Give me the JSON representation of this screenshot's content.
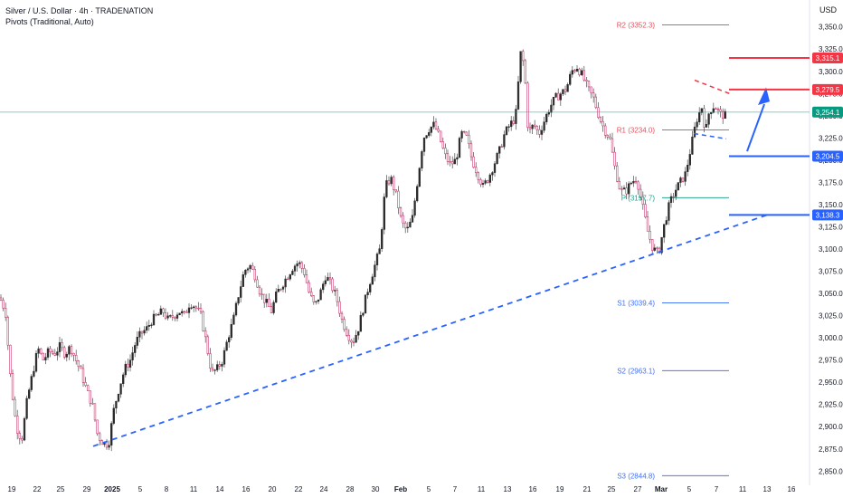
{
  "header": {
    "title": "Silver / U.S. Dollar · 4h · TRADENATION",
    "indicator": "Pivots (Traditional, Auto)"
  },
  "currency": "USD",
  "chart_data": {
    "type": "candlestick",
    "ylim": [
      2835,
      3365
    ],
    "y_ticks": [
      "3,350.0",
      "3,325.0",
      "3,300.0",
      "3,275.0",
      "3,250.0",
      "3,225.0",
      "3,200.0",
      "3,175.0",
      "3,150.0",
      "3,125.0",
      "3,100.0",
      "3,075.0",
      "3,050.0",
      "3,025.0",
      "3,000.0",
      "2,975.0",
      "2,950.0",
      "2,925.0",
      "2,900.0",
      "2,875.0",
      "2,850.0"
    ],
    "y_tick_values": [
      3350,
      3325,
      3300,
      3275,
      3250,
      3225,
      3200,
      3175,
      3150,
      3125,
      3100,
      3075,
      3050,
      3025,
      3000,
      2975,
      2950,
      2925,
      2900,
      2875,
      2850
    ],
    "x_ticks": [
      "19",
      "22",
      "25",
      "29",
      "2025",
      "5",
      "8",
      "11",
      "14",
      "16",
      "20",
      "22",
      "24",
      "28",
      "30",
      "Feb",
      "5",
      "7",
      "11",
      "13",
      "16",
      "19",
      "21",
      "25",
      "27",
      "Mar",
      "5",
      "7",
      "11",
      "13",
      "16"
    ],
    "pivots": [
      {
        "label": "R2 (3352.3)",
        "value": 3352.3,
        "color": "#f23645"
      },
      {
        "label": "R1 (3234.0)",
        "value": 3234.0,
        "color": "#f23645"
      },
      {
        "label": "P (3157.7)",
        "value": 3157.7,
        "color": "#089981"
      },
      {
        "label": "S1 (3039.4)",
        "value": 3039.4,
        "color": "#2962ff"
      },
      {
        "label": "S2 (2963.1)",
        "value": 2963.1,
        "color": "#2962ff"
      },
      {
        "label": "S3 (2844.8)",
        "value": 2844.8,
        "color": "#2962ff"
      }
    ],
    "levels": [
      {
        "value": 3315.1,
        "label": "3,315.1",
        "color": "#f23645"
      },
      {
        "value": 3279.5,
        "label": "3,279.5",
        "color": "#f23645"
      },
      {
        "value": 3254.1,
        "label": "3,254.1",
        "color": "#089981"
      },
      {
        "value": 3204.5,
        "label": "3,204.5",
        "color": "#2962ff"
      },
      {
        "value": 3138.3,
        "label": "3,138.3",
        "color": "#2962ff"
      }
    ],
    "trendline": {
      "from": [
        2875,
        2878
      ],
      "to": [
        3140,
        3139
      ],
      "style": "dashed",
      "color": "#2962ff"
    },
    "price_anchors": [
      [
        0,
        3045
      ],
      [
        6,
        3030
      ],
      [
        12,
        2950
      ],
      [
        18,
        2900
      ],
      [
        24,
        2885
      ],
      [
        30,
        2930
      ],
      [
        36,
        2960
      ],
      [
        42,
        2988
      ],
      [
        48,
        2975
      ],
      [
        54,
        2985
      ],
      [
        60,
        2982
      ],
      [
        66,
        2990
      ],
      [
        72,
        2982
      ],
      [
        78,
        2990
      ],
      [
        84,
        2975
      ],
      [
        90,
        2960
      ],
      [
        96,
        2940
      ],
      [
        102,
        2925
      ],
      [
        108,
        2890
      ],
      [
        114,
        2882
      ],
      [
        120,
        2880
      ],
      [
        126,
        2920
      ],
      [
        132,
        2945
      ],
      [
        138,
        2965
      ],
      [
        144,
        2975
      ],
      [
        150,
        2995
      ],
      [
        156,
        3005
      ],
      [
        162,
        3010
      ],
      [
        168,
        3020
      ],
      [
        174,
        3025
      ],
      [
        180,
        3030
      ],
      [
        186,
        3020
      ],
      [
        192,
        3025
      ],
      [
        198,
        3030
      ],
      [
        204,
        3025
      ],
      [
        210,
        3040
      ],
      [
        216,
        3035
      ],
      [
        222,
        3025
      ],
      [
        228,
        2995
      ],
      [
        234,
        2960
      ],
      [
        240,
        2965
      ],
      [
        246,
        2975
      ],
      [
        252,
        3000
      ],
      [
        258,
        3020
      ],
      [
        264,
        3050
      ],
      [
        270,
        3075
      ],
      [
        276,
        3082
      ],
      [
        282,
        3070
      ],
      [
        288,
        3050
      ],
      [
        294,
        3040
      ],
      [
        300,
        3030
      ],
      [
        306,
        3050
      ],
      [
        312,
        3060
      ],
      [
        318,
        3070
      ],
      [
        324,
        3080
      ],
      [
        330,
        3085
      ],
      [
        336,
        3075
      ],
      [
        342,
        3050
      ],
      [
        348,
        3035
      ],
      [
        354,
        3050
      ],
      [
        360,
        3070
      ],
      [
        366,
        3060
      ],
      [
        372,
        3045
      ],
      [
        378,
        3020
      ],
      [
        384,
        3005
      ],
      [
        390,
        2995
      ],
      [
        396,
        3010
      ],
      [
        402,
        3035
      ],
      [
        408,
        3060
      ],
      [
        414,
        3080
      ],
      [
        420,
        3100
      ],
      [
        426,
        3170
      ],
      [
        432,
        3180
      ],
      [
        438,
        3160
      ],
      [
        444,
        3130
      ],
      [
        450,
        3120
      ],
      [
        456,
        3135
      ],
      [
        462,
        3180
      ],
      [
        468,
        3225
      ],
      [
        474,
        3235
      ],
      [
        480,
        3240
      ],
      [
        486,
        3225
      ],
      [
        492,
        3205
      ],
      [
        498,
        3195
      ],
      [
        504,
        3200
      ],
      [
        510,
        3230
      ],
      [
        516,
        3225
      ],
      [
        522,
        3200
      ],
      [
        528,
        3185
      ],
      [
        534,
        3170
      ],
      [
        540,
        3180
      ],
      [
        546,
        3195
      ],
      [
        552,
        3210
      ],
      [
        558,
        3230
      ],
      [
        564,
        3240
      ],
      [
        570,
        3248
      ],
      [
        576,
        3325
      ],
      [
        580,
        3300
      ],
      [
        584,
        3230
      ],
      [
        590,
        3240
      ],
      [
        596,
        3230
      ],
      [
        602,
        3245
      ],
      [
        608,
        3260
      ],
      [
        614,
        3270
      ],
      [
        620,
        3275
      ],
      [
        626,
        3280
      ],
      [
        632,
        3300
      ],
      [
        638,
        3305
      ],
      [
        644,
        3295
      ],
      [
        650,
        3280
      ],
      [
        656,
        3270
      ],
      [
        662,
        3250
      ],
      [
        668,
        3235
      ],
      [
        674,
        3225
      ],
      [
        680,
        3190
      ],
      [
        686,
        3165
      ],
      [
        692,
        3165
      ],
      [
        698,
        3175
      ],
      [
        704,
        3180
      ],
      [
        710,
        3150
      ],
      [
        716,
        3120
      ],
      [
        722,
        3100
      ],
      [
        728,
        3095
      ],
      [
        734,
        3125
      ],
      [
        740,
        3150
      ],
      [
        746,
        3165
      ],
      [
        752,
        3175
      ],
      [
        758,
        3185
      ],
      [
        764,
        3215
      ],
      [
        770,
        3245
      ],
      [
        776,
        3260
      ],
      [
        780,
        3230
      ],
      [
        784,
        3255
      ],
      [
        790,
        3262
      ],
      [
        796,
        3252
      ],
      [
        802,
        3250
      ]
    ]
  }
}
